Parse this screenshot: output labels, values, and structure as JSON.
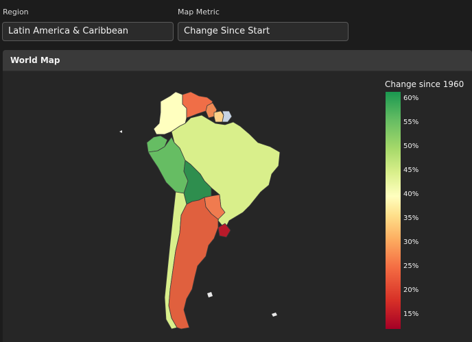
{
  "filters": {
    "region": {
      "label": "Region",
      "value": "Latin America & Caribbean"
    },
    "metric": {
      "label": "Map Metric",
      "value": "Change Since Start"
    }
  },
  "card": {
    "title": "World Map"
  },
  "map": {
    "colorbar": {
      "title": "Change since 1960",
      "ticks": [
        "60%",
        "55%",
        "50%",
        "45%",
        "40%",
        "35%",
        "30%",
        "25%",
        "20%",
        "15%"
      ],
      "colorscale": [
        "#a50026",
        "#d73027",
        "#f46d43",
        "#fdae61",
        "#fee08b",
        "#ffffbf",
        "#d9ef8b",
        "#a6d96a",
        "#66bd63",
        "#1a9850"
      ]
    },
    "colors": {
      "background": "#262626",
      "border": "#3a3a3a"
    }
  }
}
